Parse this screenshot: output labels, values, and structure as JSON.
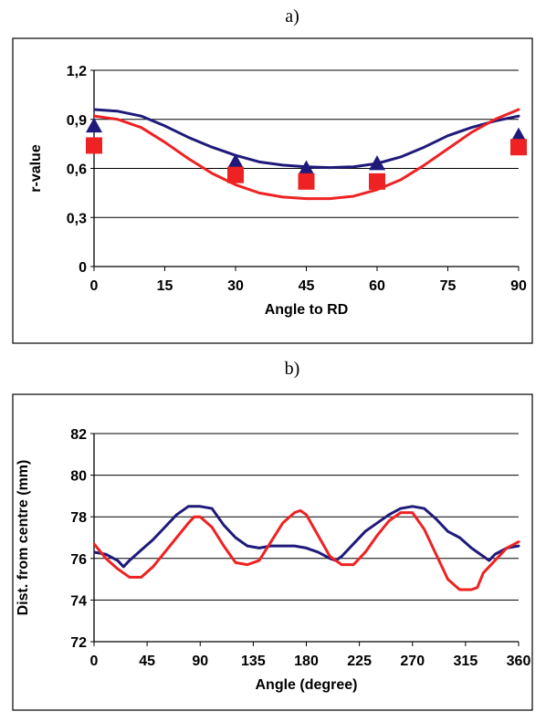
{
  "panel_labels": [
    "a)",
    "b)"
  ],
  "chart_data": [
    {
      "type": "line",
      "xlabel": "Angle to RD",
      "ylabel": "r-value",
      "xlim": [
        0,
        90
      ],
      "ylim": [
        0,
        1.2
      ],
      "x_ticks": [
        "0",
        "15",
        "30",
        "45",
        "60",
        "75",
        "90"
      ],
      "y_ticks": [
        "0",
        "0,3",
        "0,6",
        "0,9",
        "1,2"
      ],
      "grid": "horizontal",
      "colors": {
        "blue": "#1f1a7a",
        "red": "#ee2222"
      },
      "series": [
        {
          "style": "line",
          "color": "#1f1a7a",
          "x": [
            0,
            5,
            10,
            15,
            20,
            25,
            30,
            35,
            40,
            45,
            50,
            55,
            60,
            65,
            70,
            75,
            80,
            85,
            90
          ],
          "y": [
            0.96,
            0.95,
            0.92,
            0.86,
            0.79,
            0.73,
            0.68,
            0.64,
            0.62,
            0.61,
            0.605,
            0.61,
            0.63,
            0.67,
            0.73,
            0.8,
            0.85,
            0.89,
            0.92
          ]
        },
        {
          "style": "line",
          "color": "#ee2222",
          "x": [
            0,
            5,
            10,
            15,
            20,
            25,
            30,
            35,
            40,
            45,
            50,
            55,
            60,
            65,
            70,
            75,
            80,
            85,
            90
          ],
          "y": [
            0.92,
            0.9,
            0.85,
            0.76,
            0.66,
            0.57,
            0.5,
            0.45,
            0.425,
            0.415,
            0.415,
            0.43,
            0.47,
            0.53,
            0.62,
            0.72,
            0.82,
            0.9,
            0.96
          ]
        },
        {
          "style": "triangle",
          "color": "#1f1a7a",
          "x": [
            0,
            30,
            45,
            60,
            90
          ],
          "y": [
            0.86,
            0.64,
            0.6,
            0.63,
            0.8
          ]
        },
        {
          "style": "square",
          "color": "#ee2222",
          "x": [
            0,
            30,
            45,
            60,
            90
          ],
          "y": [
            0.74,
            0.56,
            0.52,
            0.52,
            0.73
          ]
        }
      ]
    },
    {
      "type": "line",
      "xlabel": "Angle (degree)",
      "ylabel": "Dist. from centre (mm)",
      "xlim": [
        0,
        360
      ],
      "ylim": [
        72,
        82
      ],
      "x_ticks": [
        "0",
        "45",
        "90",
        "135",
        "180",
        "225",
        "270",
        "315",
        "360"
      ],
      "y_ticks": [
        "72",
        "74",
        "76",
        "78",
        "80",
        "82"
      ],
      "grid": "horizontal",
      "series": [
        {
          "color": "#1f1a7a",
          "x": [
            0,
            10,
            20,
            25,
            30,
            40,
            50,
            60,
            70,
            80,
            90,
            100,
            110,
            120,
            130,
            140,
            150,
            160,
            170,
            180,
            190,
            200,
            205,
            210,
            220,
            230,
            240,
            250,
            260,
            270,
            280,
            290,
            300,
            310,
            320,
            330,
            335,
            340,
            350,
            360
          ],
          "y": [
            76.3,
            76.2,
            75.9,
            75.6,
            75.9,
            76.4,
            76.9,
            77.5,
            78.1,
            78.5,
            78.5,
            78.4,
            77.6,
            77.0,
            76.6,
            76.5,
            76.6,
            76.6,
            76.6,
            76.5,
            76.3,
            76.0,
            75.9,
            76.1,
            76.7,
            77.3,
            77.7,
            78.1,
            78.4,
            78.5,
            78.4,
            77.9,
            77.3,
            77.0,
            76.5,
            76.1,
            75.9,
            76.2,
            76.5,
            76.6
          ]
        },
        {
          "color": "#ee2222",
          "x": [
            0,
            10,
            20,
            30,
            40,
            50,
            60,
            70,
            80,
            85,
            90,
            100,
            110,
            120,
            130,
            140,
            150,
            160,
            170,
            175,
            180,
            190,
            200,
            210,
            220,
            230,
            240,
            250,
            260,
            265,
            270,
            280,
            290,
            300,
            310,
            320,
            325,
            330,
            340,
            350,
            360
          ],
          "y": [
            76.7,
            76.0,
            75.5,
            75.1,
            75.1,
            75.6,
            76.3,
            77.0,
            77.7,
            78.0,
            78.0,
            77.5,
            76.6,
            75.8,
            75.7,
            75.9,
            76.8,
            77.7,
            78.2,
            78.3,
            78.1,
            77.1,
            76.1,
            75.7,
            75.7,
            76.3,
            77.1,
            77.8,
            78.2,
            78.2,
            78.2,
            77.4,
            76.2,
            75.0,
            74.5,
            74.5,
            74.6,
            75.3,
            75.9,
            76.5,
            76.8
          ]
        }
      ]
    }
  ]
}
